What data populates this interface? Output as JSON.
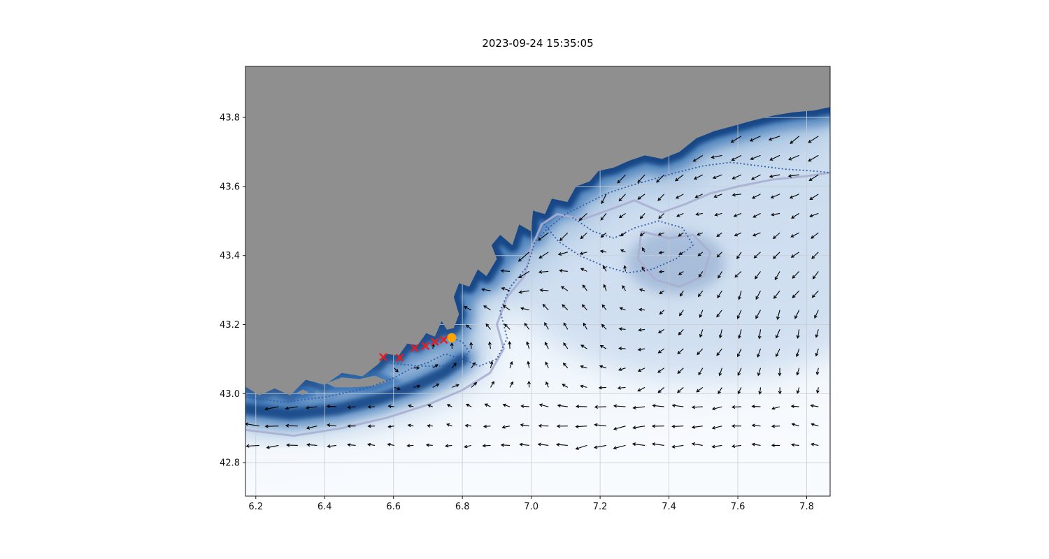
{
  "chart_data": {
    "type": "map-quiver",
    "title": "2023-09-24 15:35:05",
    "xlabel": "",
    "ylabel": "",
    "xlim": [
      6.17,
      7.868
    ],
    "ylim": [
      42.703,
      43.948
    ],
    "grid": true,
    "x_ticks": [
      6.2,
      6.4,
      6.6,
      6.8,
      7.0,
      7.2,
      7.4,
      7.6,
      7.8
    ],
    "x_tick_labels": [
      "6.2",
      "6.4",
      "6.6",
      "6.8",
      "7.0",
      "7.2",
      "7.4",
      "7.6",
      "7.8"
    ],
    "y_ticks": [
      42.8,
      43.0,
      43.2,
      43.4,
      43.6,
      43.8
    ],
    "y_tick_labels": [
      "42.8",
      "43.0",
      "43.2",
      "43.4",
      "43.6",
      "43.8"
    ],
    "colors": {
      "land": "#8f8f8f",
      "ocean_shallow": "#f8fbfe",
      "ocean_mid": "#b9cfe8",
      "ocean_blob": "#8fa8cc",
      "slope": "#7fa6cf",
      "slope2": "#2f6cb0",
      "deep": "#0b3d7e",
      "grid": "#c8cdd2",
      "border": "#1a1a1a"
    },
    "quiver": {
      "color": "#000000",
      "lon_range": [
        6.21,
        7.85
      ],
      "lat_range": [
        42.85,
        43.82
      ],
      "step": 0.056
    },
    "track": {
      "marker": "x",
      "color": "#ed1c1c",
      "points": [
        [
          6.57,
          43.106
        ],
        [
          6.618,
          43.104
        ],
        [
          6.661,
          43.132
        ],
        [
          6.693,
          43.138
        ],
        [
          6.72,
          43.15
        ],
        [
          6.746,
          43.156
        ]
      ]
    },
    "current_position": {
      "marker": "circle",
      "color": "#ffa500",
      "point": [
        6.769,
        43.162
      ]
    },
    "coastline": [
      [
        6.17,
        43.02
      ],
      [
        6.21,
        42.995
      ],
      [
        6.255,
        43.015
      ],
      [
        6.3,
        42.995
      ],
      [
        6.345,
        43.04
      ],
      [
        6.4,
        43.025
      ],
      [
        6.45,
        43.06
      ],
      [
        6.51,
        43.05
      ],
      [
        6.555,
        43.085
      ],
      [
        6.58,
        43.115
      ],
      [
        6.615,
        43.11
      ],
      [
        6.64,
        43.145
      ],
      [
        6.67,
        43.14
      ],
      [
        6.695,
        43.175
      ],
      [
        6.72,
        43.165
      ],
      [
        6.74,
        43.21
      ],
      [
        6.755,
        43.185
      ],
      [
        6.775,
        43.19
      ],
      [
        6.79,
        43.23
      ],
      [
        6.775,
        43.28
      ],
      [
        6.79,
        43.32
      ],
      [
        6.82,
        43.31
      ],
      [
        6.845,
        43.36
      ],
      [
        6.87,
        43.34
      ],
      [
        6.9,
        43.39
      ],
      [
        6.885,
        43.43
      ],
      [
        6.91,
        43.46
      ],
      [
        6.945,
        43.43
      ],
      [
        6.965,
        43.49
      ],
      [
        7.0,
        43.47
      ],
      [
        7.005,
        43.53
      ],
      [
        7.04,
        43.52
      ],
      [
        7.06,
        43.565
      ],
      [
        7.105,
        43.555
      ],
      [
        7.13,
        43.6
      ],
      [
        7.17,
        43.615
      ],
      [
        7.195,
        43.645
      ],
      [
        7.24,
        43.655
      ],
      [
        7.285,
        43.675
      ],
      [
        7.33,
        43.69
      ],
      [
        7.38,
        43.68
      ],
      [
        7.43,
        43.7
      ],
      [
        7.48,
        43.74
      ],
      [
        7.53,
        43.76
      ],
      [
        7.585,
        43.775
      ],
      [
        7.64,
        43.79
      ],
      [
        7.7,
        43.805
      ],
      [
        7.76,
        43.815
      ],
      [
        7.82,
        43.82
      ],
      [
        7.868,
        43.83
      ]
    ],
    "islands": [
      [
        [
          6.405,
          43.03
        ],
        [
          6.45,
          43.047
        ],
        [
          6.5,
          43.042
        ],
        [
          6.545,
          43.052
        ],
        [
          6.585,
          43.036
        ],
        [
          6.545,
          43.022
        ],
        [
          6.48,
          43.018
        ],
        [
          6.43,
          43.018
        ]
      ],
      [
        [
          6.23,
          43.035
        ],
        [
          6.248,
          43.045
        ],
        [
          6.265,
          43.037
        ],
        [
          6.247,
          43.027
        ]
      ],
      [
        [
          6.32,
          43.003
        ],
        [
          6.337,
          43.012
        ],
        [
          6.353,
          43.004
        ],
        [
          6.336,
          42.996
        ]
      ]
    ],
    "bathymetry": {
      "west_band": [
        [
          6.17,
          42.955
        ],
        [
          6.3,
          42.94
        ],
        [
          6.44,
          42.955
        ],
        [
          6.56,
          42.985
        ],
        [
          6.66,
          43.02
        ],
        [
          6.745,
          43.06
        ],
        [
          6.8,
          43.1
        ]
      ]
    },
    "contours": {
      "light": {
        "color": "#a9aed0",
        "paths": [
          [
            [
              6.17,
              42.895
            ],
            [
              6.31,
              42.878
            ],
            [
              6.45,
              42.9
            ],
            [
              6.58,
              42.93
            ],
            [
              6.7,
              42.968
            ],
            [
              6.8,
              43.01
            ],
            [
              6.88,
              43.06
            ],
            [
              6.92,
              43.13
            ],
            [
              6.9,
              43.2
            ],
            [
              6.93,
              43.28
            ],
            [
              6.98,
              43.34
            ],
            [
              7.0,
              43.42
            ],
            [
              7.03,
              43.49
            ],
            [
              7.075,
              43.52
            ],
            [
              7.15,
              43.505
            ],
            [
              7.22,
              43.53
            ],
            [
              7.3,
              43.56
            ],
            [
              7.38,
              43.525
            ],
            [
              7.45,
              43.55
            ],
            [
              7.52,
              43.58
            ],
            [
              7.6,
              43.6
            ],
            [
              7.7,
              43.62
            ],
            [
              7.8,
              43.63
            ],
            [
              7.868,
              43.64
            ]
          ],
          [
            [
              7.32,
              43.47
            ],
            [
              7.4,
              43.45
            ],
            [
              7.47,
              43.46
            ],
            [
              7.52,
              43.41
            ],
            [
              7.5,
              43.34
            ],
            [
              7.43,
              43.31
            ],
            [
              7.36,
              43.33
            ],
            [
              7.31,
              43.39
            ],
            [
              7.32,
              43.47
            ]
          ]
        ]
      },
      "dark": {
        "color": "#2c5aa8",
        "paths": [
          [
            [
              6.17,
              42.99
            ],
            [
              6.28,
              42.975
            ],
            [
              6.4,
              42.99
            ],
            [
              6.52,
              43.015
            ],
            [
              6.6,
              43.045
            ],
            [
              6.655,
              43.075
            ],
            [
              6.7,
              43.09
            ],
            [
              6.75,
              43.115
            ],
            [
              6.8,
              43.1
            ],
            [
              6.85,
              43.08
            ],
            [
              6.9,
              43.1
            ],
            [
              6.93,
              43.16
            ],
            [
              6.91,
              43.24
            ],
            [
              6.94,
              43.31
            ],
            [
              6.99,
              43.37
            ],
            [
              7.01,
              43.44
            ],
            [
              7.05,
              43.48
            ],
            [
              7.1,
              43.52
            ],
            [
              7.16,
              43.55
            ],
            [
              7.22,
              43.58
            ],
            [
              7.28,
              43.6
            ],
            [
              7.35,
              43.62
            ],
            [
              7.42,
              43.64
            ],
            [
              7.5,
              43.66
            ],
            [
              7.58,
              43.67
            ],
            [
              7.66,
              43.66
            ],
            [
              7.74,
              43.65
            ],
            [
              7.82,
              43.645
            ],
            [
              7.868,
              43.64
            ]
          ],
          [
            [
              7.03,
              43.5
            ],
            [
              7.08,
              43.44
            ],
            [
              7.14,
              43.4
            ],
            [
              7.21,
              43.37
            ],
            [
              7.28,
              43.35
            ],
            [
              7.35,
              43.36
            ],
            [
              7.42,
              43.39
            ],
            [
              7.47,
              43.43
            ],
            [
              7.44,
              43.48
            ],
            [
              7.37,
              43.5
            ],
            [
              7.3,
              43.48
            ],
            [
              7.24,
              43.45
            ],
            [
              7.18,
              43.47
            ],
            [
              7.12,
              43.51
            ]
          ],
          [
            [
              6.58,
              43.09
            ],
            [
              6.62,
              43.085
            ],
            [
              6.68,
              43.08
            ],
            [
              6.74,
              43.08
            ],
            [
              6.79,
              43.09
            ],
            [
              6.82,
              43.12
            ],
            [
              6.8,
              43.15
            ],
            [
              6.76,
              43.165
            ],
            [
              6.72,
              43.15
            ],
            [
              6.68,
              43.135
            ],
            [
              6.64,
              43.12
            ],
            [
              6.6,
              43.1
            ],
            [
              6.58,
              43.09
            ]
          ]
        ]
      }
    }
  }
}
